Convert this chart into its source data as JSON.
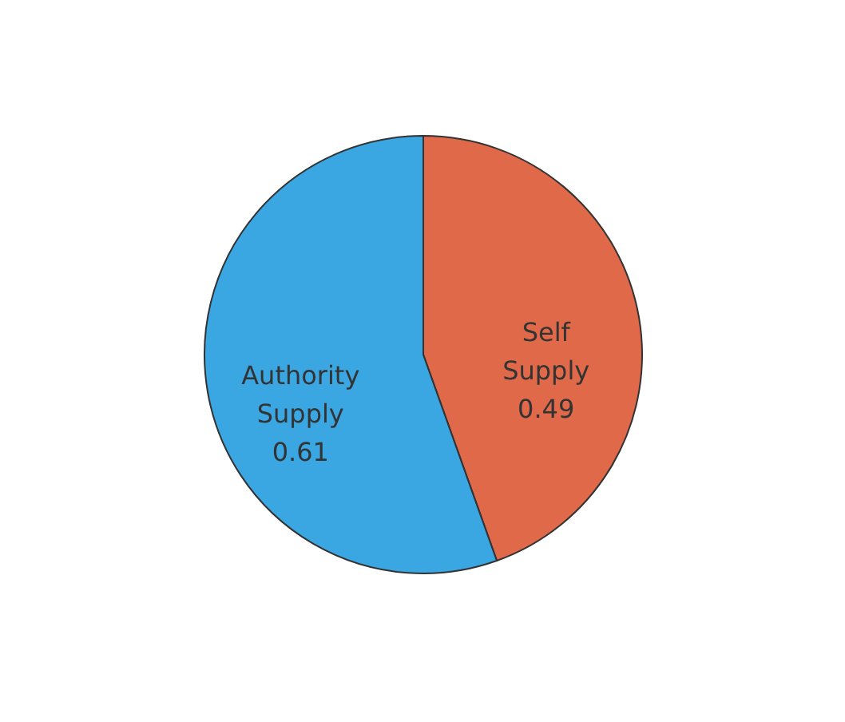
{
  "chart_data": {
    "type": "pie",
    "categories": [
      "Self Supply",
      "Authority Supply"
    ],
    "values": [
      0.49,
      0.61
    ],
    "colors": [
      "#e0694a",
      "#3aa6e2"
    ],
    "data_labels": true,
    "legend": false
  }
}
